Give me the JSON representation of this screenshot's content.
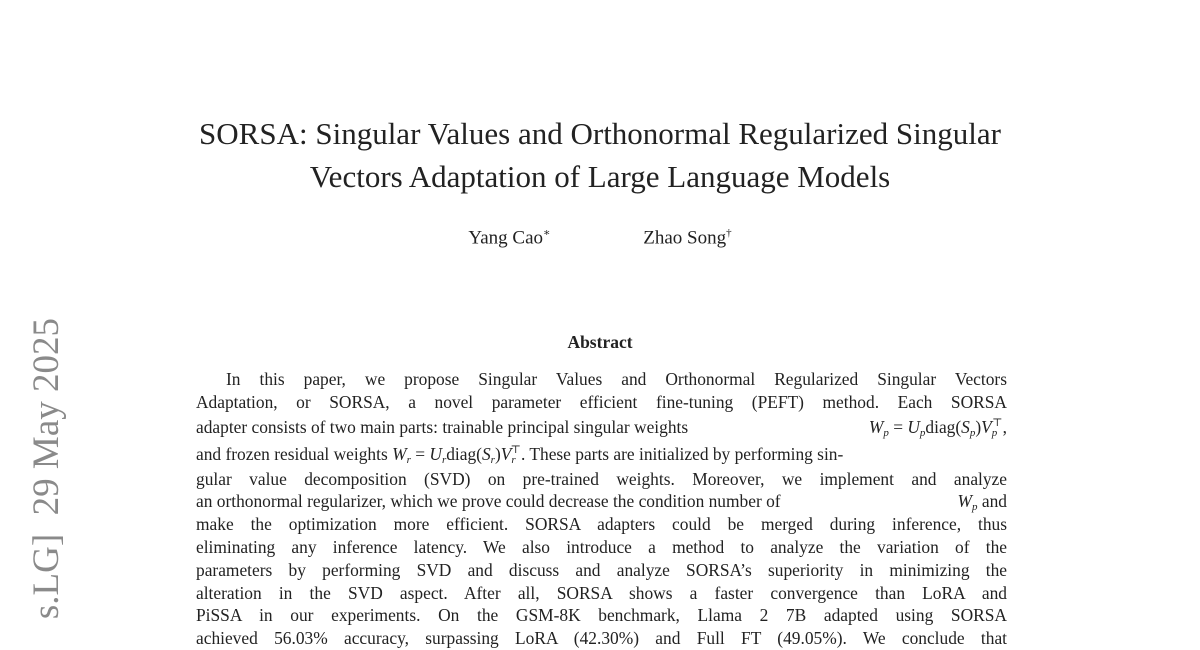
{
  "sidebar_stamp": "s.LG]  29 May 2025",
  "title": [
    "SORSA: Singular Values and Orthonormal Regularized Singular",
    "Vectors Adaptation of Large Language Models"
  ],
  "authors": [
    {
      "name": "Yang Cao",
      "mark": "∗"
    },
    {
      "name": "Zhao Song",
      "mark": "†"
    }
  ],
  "abstract": {
    "heading": "Abstract",
    "lines": [
      "In this paper, we propose Singular Values and Orthonormal Regularized Singular Vectors",
      "Adaptation, or SORSA, a novel parameter efficient fine-tuning (PEFT) method. Each SORSA",
      "adapter consists of two main parts: trainable principal singular weights",
      "and frozen residual weights",
      "gular value decomposition (SVD) on pre-trained weights. Moreover, we implement and analyze",
      "an orthonormal regularizer, which we prove could decrease the condition number of",
      "make the optimization more efficient. SORSA adapters could be merged during inference, thus",
      "eliminating any inference latency. We also introduce a method to analyze the variation of the",
      "parameters by performing SVD and discuss and analyze SORSA’s superiority in minimizing the",
      "alteration in the SVD aspect. After all, SORSA shows a faster convergence than LoRA and",
      "PiSSA in our experiments. On the GSM-8K benchmark, Llama 2 7B adapted using SORSA",
      "achieved 56.03% accuracy, surpassing LoRA (42.30%) and Full FT (49.05%). We conclude that"
    ],
    "line3_tail": ",",
    "line4_tail": ". These parts are initialized by performing sin-",
    "line6_tail": "and",
    "math_p": {
      "W": "W",
      "sub": "p",
      "eq": " = ",
      "U": "U",
      "diag": "diag(",
      "S": "S",
      "close": ")",
      "V": "V",
      "T": "⊤"
    },
    "math_r": {
      "W": "W",
      "sub": "r",
      "eq": " = ",
      "U": "U",
      "diag": "diag(",
      "S": "S",
      "close": ")",
      "V": "V",
      "T": "⊤"
    }
  }
}
